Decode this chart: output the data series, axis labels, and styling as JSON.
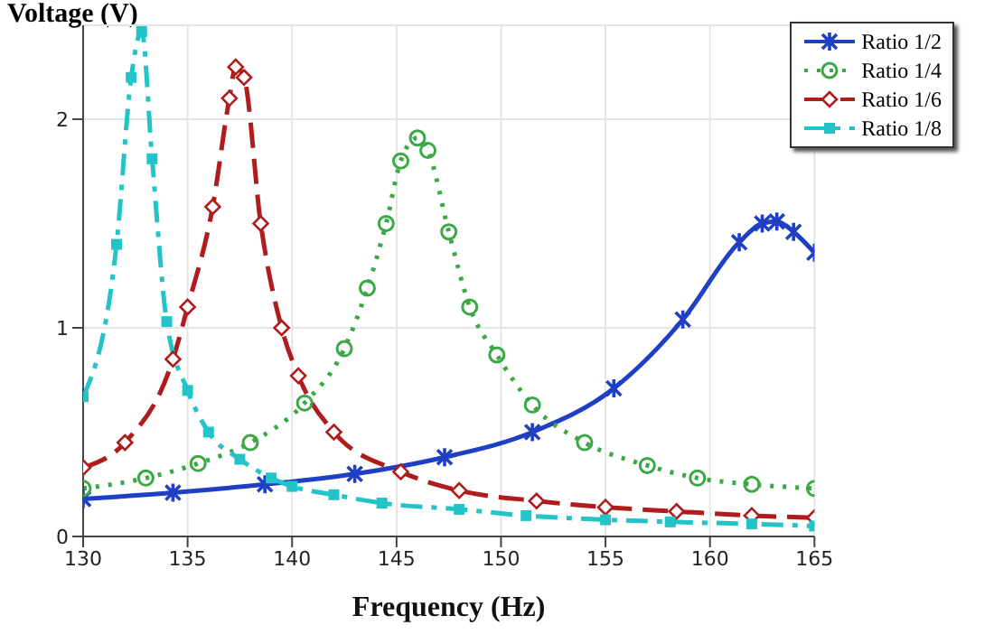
{
  "chart_data": {
    "type": "line",
    "xlabel": "Frequency (Hz)",
    "ylabel": "Voltage (V)",
    "xlim": [
      130,
      165
    ],
    "xticks": [
      130,
      135,
      140,
      145,
      150,
      155,
      160,
      165
    ],
    "ylim": [
      0,
      2.45
    ],
    "yticks": [
      0,
      1,
      2
    ],
    "grid": true,
    "legend": "top right",
    "series": [
      {
        "name": "Ratio 1/2",
        "color": "#1f3fc4",
        "marker": "cross",
        "line_style": "solid",
        "x": [
          130,
          134.3,
          138.7,
          143,
          147.3,
          151.5,
          155.4,
          158.7,
          161.4,
          162.5,
          163.2,
          164,
          165
        ],
        "values": [
          0.18,
          0.21,
          0.25,
          0.3,
          0.38,
          0.5,
          0.71,
          1.04,
          1.41,
          1.5,
          1.51,
          1.46,
          1.36
        ]
      },
      {
        "name": "Ratio 1/4",
        "color": "#3aa845",
        "marker": "circle",
        "line_style": "dotted",
        "x": [
          130,
          133,
          135.5,
          138,
          140.6,
          142.5,
          143.6,
          144.5,
          145.2,
          146,
          146.5,
          147.5,
          148.5,
          149.8,
          151.5,
          154,
          157,
          159.4,
          162,
          165
        ],
        "values": [
          0.23,
          0.28,
          0.35,
          0.45,
          0.64,
          0.9,
          1.19,
          1.5,
          1.8,
          1.91,
          1.85,
          1.46,
          1.1,
          0.87,
          0.63,
          0.45,
          0.34,
          0.28,
          0.25,
          0.23
        ]
      },
      {
        "name": "Ratio 1/6",
        "color": "#b01c1c",
        "marker": "diamond",
        "line_style": "dashed",
        "x": [
          130,
          132,
          134.3,
          135,
          136.2,
          137,
          137.3,
          137.7,
          138.5,
          139.5,
          140.3,
          142,
          145.2,
          148,
          151.7,
          155,
          158.4,
          162,
          165
        ],
        "values": [
          0.33,
          0.45,
          0.85,
          1.1,
          1.58,
          2.1,
          2.25,
          2.2,
          1.5,
          1.0,
          0.77,
          0.5,
          0.31,
          0.22,
          0.17,
          0.14,
          0.12,
          0.1,
          0.09
        ]
      },
      {
        "name": "Ratio 1/8",
        "color": "#22c4c8",
        "marker": "square",
        "line_style": "dashdot",
        "x": [
          130,
          131.6,
          132.3,
          132.8,
          133.3,
          134,
          135,
          136,
          137.5,
          139,
          140,
          142,
          144.3,
          148,
          151.2,
          155,
          158.1,
          162,
          165
        ],
        "values": [
          0.67,
          1.4,
          2.2,
          2.42,
          1.81,
          1.03,
          0.7,
          0.5,
          0.37,
          0.28,
          0.24,
          0.2,
          0.16,
          0.13,
          0.1,
          0.08,
          0.07,
          0.06,
          0.05
        ]
      }
    ]
  }
}
